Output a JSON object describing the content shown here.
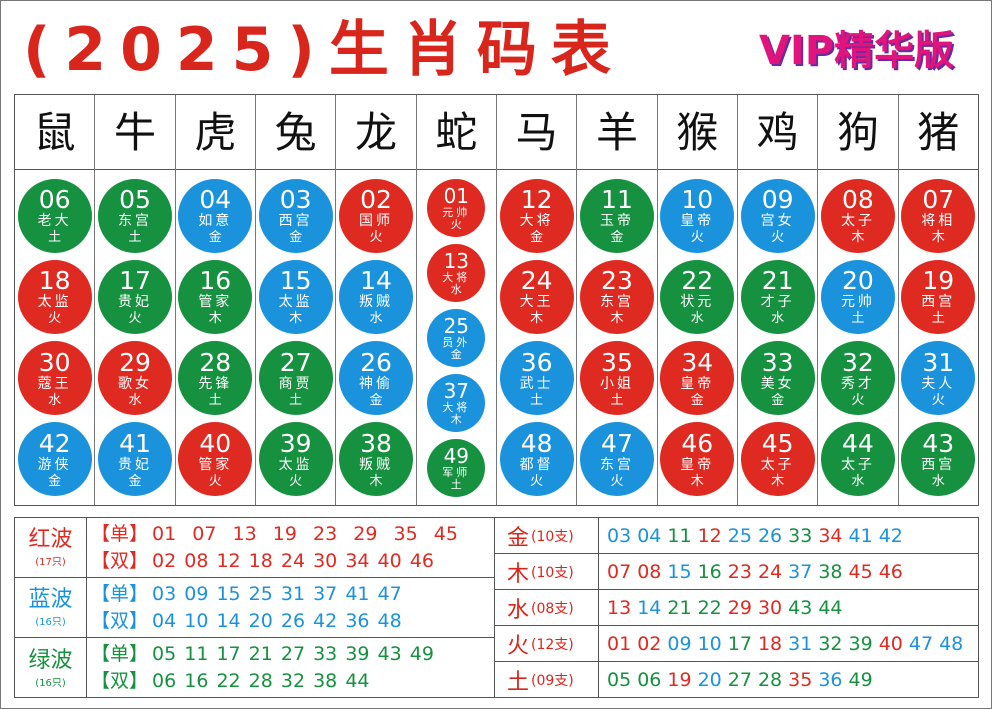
{
  "title": "(2025)生肖码表",
  "badge": "VIP精华版",
  "colors": {
    "red": "#df2a22",
    "blue": "#1b93dc",
    "green": "#16913f"
  },
  "zodiac": [
    {
      "name": "鼠",
      "balls": [
        {
          "num": "06",
          "title": "老大",
          "element": "土",
          "color": "green"
        },
        {
          "num": "18",
          "title": "太监",
          "element": "火",
          "color": "red"
        },
        {
          "num": "30",
          "title": "蔻王",
          "element": "水",
          "color": "red"
        },
        {
          "num": "42",
          "title": "游侠",
          "element": "金",
          "color": "blue"
        }
      ]
    },
    {
      "name": "牛",
      "balls": [
        {
          "num": "05",
          "title": "东宫",
          "element": "土",
          "color": "green"
        },
        {
          "num": "17",
          "title": "贵妃",
          "element": "火",
          "color": "green"
        },
        {
          "num": "29",
          "title": "歌女",
          "element": "水",
          "color": "red"
        },
        {
          "num": "41",
          "title": "贵妃",
          "element": "金",
          "color": "blue"
        }
      ]
    },
    {
      "name": "虎",
      "balls": [
        {
          "num": "04",
          "title": "如意",
          "element": "金",
          "color": "blue"
        },
        {
          "num": "16",
          "title": "管家",
          "element": "木",
          "color": "green"
        },
        {
          "num": "28",
          "title": "先锋",
          "element": "土",
          "color": "green"
        },
        {
          "num": "40",
          "title": "管家",
          "element": "火",
          "color": "red"
        }
      ]
    },
    {
      "name": "兔",
      "balls": [
        {
          "num": "03",
          "title": "西宫",
          "element": "金",
          "color": "blue"
        },
        {
          "num": "15",
          "title": "太监",
          "element": "木",
          "color": "blue"
        },
        {
          "num": "27",
          "title": "商贾",
          "element": "土",
          "color": "green"
        },
        {
          "num": "39",
          "title": "太监",
          "element": "火",
          "color": "green"
        }
      ]
    },
    {
      "name": "龙",
      "balls": [
        {
          "num": "02",
          "title": "国师",
          "element": "火",
          "color": "red"
        },
        {
          "num": "14",
          "title": "叛贼",
          "element": "水",
          "color": "blue"
        },
        {
          "num": "26",
          "title": "神偷",
          "element": "金",
          "color": "blue"
        },
        {
          "num": "38",
          "title": "叛贼",
          "element": "木",
          "color": "green"
        }
      ]
    },
    {
      "name": "蛇",
      "balls": [
        {
          "num": "01",
          "title": "元帅",
          "element": "火",
          "color": "red"
        },
        {
          "num": "13",
          "title": "大将",
          "element": "水",
          "color": "red"
        },
        {
          "num": "25",
          "title": "员外",
          "element": "金",
          "color": "blue"
        },
        {
          "num": "37",
          "title": "大将",
          "element": "木",
          "color": "blue"
        },
        {
          "num": "49",
          "title": "军师",
          "element": "土",
          "color": "green"
        }
      ]
    },
    {
      "name": "马",
      "balls": [
        {
          "num": "12",
          "title": "大将",
          "element": "金",
          "color": "red"
        },
        {
          "num": "24",
          "title": "大王",
          "element": "木",
          "color": "red"
        },
        {
          "num": "36",
          "title": "武士",
          "element": "土",
          "color": "blue"
        },
        {
          "num": "48",
          "title": "都督",
          "element": "火",
          "color": "blue"
        }
      ]
    },
    {
      "name": "羊",
      "balls": [
        {
          "num": "11",
          "title": "玉帝",
          "element": "金",
          "color": "green"
        },
        {
          "num": "23",
          "title": "东宫",
          "element": "木",
          "color": "red"
        },
        {
          "num": "35",
          "title": "小姐",
          "element": "土",
          "color": "red"
        },
        {
          "num": "47",
          "title": "东宫",
          "element": "火",
          "color": "blue"
        }
      ]
    },
    {
      "name": "猴",
      "balls": [
        {
          "num": "10",
          "title": "皇帝",
          "element": "火",
          "color": "blue"
        },
        {
          "num": "22",
          "title": "状元",
          "element": "水",
          "color": "green"
        },
        {
          "num": "34",
          "title": "皇帝",
          "element": "金",
          "color": "red"
        },
        {
          "num": "46",
          "title": "皇帝",
          "element": "木",
          "color": "red"
        }
      ]
    },
    {
      "name": "鸡",
      "balls": [
        {
          "num": "09",
          "title": "宫女",
          "element": "火",
          "color": "blue"
        },
        {
          "num": "21",
          "title": "才子",
          "element": "水",
          "color": "green"
        },
        {
          "num": "33",
          "title": "美女",
          "element": "金",
          "color": "green"
        },
        {
          "num": "45",
          "title": "太子",
          "element": "木",
          "color": "red"
        }
      ]
    },
    {
      "name": "狗",
      "balls": [
        {
          "num": "08",
          "title": "太子",
          "element": "木",
          "color": "red"
        },
        {
          "num": "20",
          "title": "元帅",
          "element": "土",
          "color": "blue"
        },
        {
          "num": "32",
          "title": "秀才",
          "element": "火",
          "color": "green"
        },
        {
          "num": "44",
          "title": "太子",
          "element": "水",
          "color": "green"
        }
      ]
    },
    {
      "name": "猪",
      "balls": [
        {
          "num": "07",
          "title": "将相",
          "element": "木",
          "color": "red"
        },
        {
          "num": "19",
          "title": "西宫",
          "element": "土",
          "color": "red"
        },
        {
          "num": "31",
          "title": "夫人",
          "element": "火",
          "color": "blue"
        },
        {
          "num": "43",
          "title": "西宫",
          "element": "水",
          "color": "green"
        }
      ]
    }
  ],
  "waves": [
    {
      "label": "红波",
      "count": "(17只)",
      "color": "red",
      "odd_label": "【单】",
      "odd": "01  07  13  19  23  29  35  45",
      "even_label": "【双】",
      "even": "02 08 12 18 24 30 34 40 46"
    },
    {
      "label": "蓝波",
      "count": "(16只)",
      "color": "blue",
      "odd_label": "【单】",
      "odd": "03 09 15 25 31 37 41 47",
      "even_label": "【双】",
      "even": "04 10 14 20 26 42 36 48"
    },
    {
      "label": "绿波",
      "count": "(16只)",
      "color": "green",
      "odd_label": "【单】",
      "odd": "05 11 17 21 27 33 39 43 49",
      "even_label": "【双】",
      "even": "06 16 22 28 32 38 44"
    }
  ],
  "elements": [
    {
      "label": "金",
      "count": "(10支)",
      "nums": [
        "03",
        "04",
        "11",
        "12",
        "25",
        "26",
        "33",
        "34",
        "41",
        "42"
      ]
    },
    {
      "label": "木",
      "count": "(10支)",
      "nums": [
        "07",
        "08",
        "15",
        "16",
        "23",
        "24",
        "37",
        "38",
        "45",
        "46"
      ]
    },
    {
      "label": "水",
      "count": "(08支)",
      "nums": [
        "13",
        "14",
        "21",
        "22",
        "29",
        "30",
        "43",
        "44"
      ]
    },
    {
      "label": "火",
      "count": "(12支)",
      "nums": [
        "01",
        "02",
        "09",
        "10",
        "17",
        "18",
        "31",
        "32",
        "39",
        "40",
        "47",
        "48"
      ]
    },
    {
      "label": "土",
      "count": "(09支)",
      "nums": [
        "05",
        "06",
        "19",
        "20",
        "27",
        "28",
        "35",
        "36",
        "49"
      ]
    }
  ]
}
